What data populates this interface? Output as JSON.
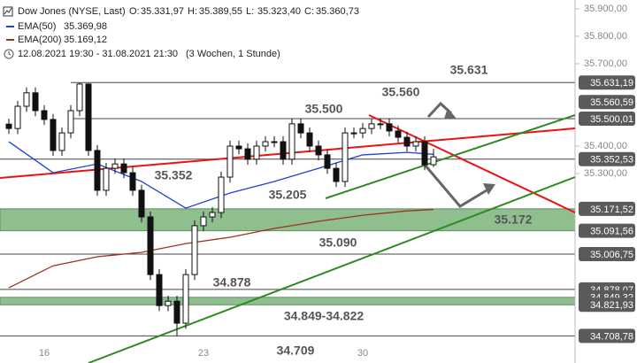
{
  "chart_data": {
    "type": "candlestick",
    "title": "Dow Jones (NYSE, Last)",
    "ohlc": [
      {
        "label": "O:",
        "value": "35.331,97"
      },
      {
        "label": "H:",
        "value": "35.389,55"
      },
      {
        "label": "L:",
        "value": "35.323,40"
      },
      {
        "label": "C:",
        "value": "35.360,73"
      }
    ],
    "period": "12.08.2021 19:30 - 31.08.2021 21:30",
    "period_note": "(3 Wochen, 1 Stunde)",
    "categories": [
      null,
      null,
      null,
      null,
      "16",
      null,
      null,
      null,
      null,
      null,
      null,
      null,
      null,
      null,
      null,
      null,
      null,
      null,
      null,
      null,
      null,
      null,
      "23",
      null,
      null,
      null,
      null,
      null,
      null,
      null,
      null,
      null,
      null,
      null,
      null,
      null,
      null,
      null,
      null,
      null,
      "30",
      null,
      null,
      null,
      null,
      null,
      null,
      null,
      null
    ],
    "open": [
      35480,
      35464,
      35545,
      35594,
      35529,
      35497,
      35384,
      35448,
      35529,
      35626,
      35384,
      35239,
      35319,
      35335,
      35303,
      35239,
      35142,
      34932,
      34819,
      34835,
      34755,
      34932,
      35110,
      35142,
      35158,
      35287,
      35400,
      35390,
      35352,
      35400,
      35416,
      35416,
      35352,
      35481,
      35448,
      35400,
      35368,
      35319,
      35271,
      35448,
      35448,
      35464,
      35481,
      35481,
      35455,
      35432,
      35400,
      35416,
      35331.97
    ],
    "high": [
      35500,
      35565,
      35614,
      35614,
      35549,
      35517,
      35468,
      35549,
      35631.19,
      35628,
      35404,
      35339,
      35355,
      35355,
      35323,
      35259,
      35162,
      34952,
      34855,
      34855,
      34952,
      35130,
      35162,
      35178,
      35307,
      35420,
      35420,
      35410,
      35420,
      35436,
      35436,
      35436,
      35501,
      35501,
      35468,
      35420,
      35388,
      35339,
      35468,
      35468,
      35484,
      35501,
      35501,
      35501,
      35475,
      35452,
      35436,
      35436,
      35389.55
    ],
    "low": [
      35444,
      35444,
      35525,
      35509,
      35477,
      35364,
      35364,
      35428,
      35509,
      35364,
      35219,
      35219,
      35299,
      35283,
      35219,
      35122,
      34912,
      34799,
      34799,
      34708.78,
      34735,
      34912,
      35090,
      35122,
      35138,
      35267,
      35370,
      35332,
      35332,
      35380,
      35396,
      35332,
      35332,
      35428,
      35380,
      35348,
      35299,
      35251,
      35251,
      35428,
      35428,
      35444,
      35461,
      35435,
      35412,
      35380,
      35380,
      35312,
      35323.4
    ],
    "close": [
      35464,
      35545,
      35594,
      35529,
      35497,
      35384,
      35448,
      35529,
      35626,
      35384,
      35239,
      35319,
      35335,
      35303,
      35239,
      35142,
      34932,
      34819,
      34835,
      34755,
      34932,
      35110,
      35142,
      35158,
      35287,
      35400,
      35390,
      35352,
      35400,
      35416,
      35416,
      35352,
      35481,
      35448,
      35400,
      35368,
      35319,
      35271,
      35448,
      35448,
      35464,
      35481,
      35481,
      35455,
      35432,
      35400,
      35416,
      35331.97,
      35360.73
    ],
    "series": [
      {
        "name": "EMA(50)",
        "color": "#1f3fd6",
        "last_label": "35.369,98",
        "x": [
          0,
          5,
          10,
          15,
          20,
          25,
          30,
          35,
          40,
          45,
          48
        ],
        "values": [
          35416,
          35303,
          35335,
          35271,
          35174,
          35229,
          35271,
          35319,
          35368,
          35377,
          35369.98
        ]
      },
      {
        "name": "EMA(200)",
        "color": "#a0321e",
        "last_label": "35.169,12",
        "x": [
          0,
          5,
          10,
          15,
          20,
          25,
          30,
          35,
          40,
          45,
          48
        ],
        "values": [
          34884,
          34964,
          34997,
          35013,
          35045,
          35068,
          35100,
          35126,
          35148,
          35164,
          35169.12
        ]
      }
    ],
    "ylim": [
      34610,
      35932
    ],
    "yticks": [
      {
        "value": 35900,
        "label": "35.900,00"
      },
      {
        "value": 35800,
        "label": "35.800,00"
      },
      {
        "value": 35700,
        "label": "35.700,00"
      },
      {
        "value": 35400,
        "label": "35.400,00"
      },
      {
        "value": 35300,
        "label": "35.300,00"
      }
    ],
    "levels": [
      {
        "value": 35631.19,
        "label": "35.631,19",
        "kind": "line"
      },
      {
        "value": 35560.59,
        "label": "35.560,59",
        "kind": "tag"
      },
      {
        "value": 35500.01,
        "label": "35.500,01",
        "kind": "line"
      },
      {
        "value": 35352.53,
        "label": "35.352,53",
        "kind": "line"
      },
      {
        "value": 35171.52,
        "label": "35.171,52",
        "kind": "band-top"
      },
      {
        "value": 35091.56,
        "label": "35.091,56",
        "kind": "band-bottom"
      },
      {
        "value": 35006.75,
        "label": "35.006,75",
        "kind": "line"
      },
      {
        "value": 34878.07,
        "label": "34.878,07",
        "kind": "line"
      },
      {
        "value": 34849.32,
        "label": "34.849,32",
        "kind": "band-top"
      },
      {
        "value": 34821.93,
        "label": "34.821,93",
        "kind": "band-bottom"
      },
      {
        "value": 34708.78,
        "label": "34.708,78",
        "kind": "line"
      }
    ],
    "annotations": [
      "35.631",
      "35.560",
      "35.500",
      "35.352",
      "35.205",
      "35.172",
      "35.090",
      "34.878",
      "34.849-34.822",
      "34.709"
    ]
  }
}
